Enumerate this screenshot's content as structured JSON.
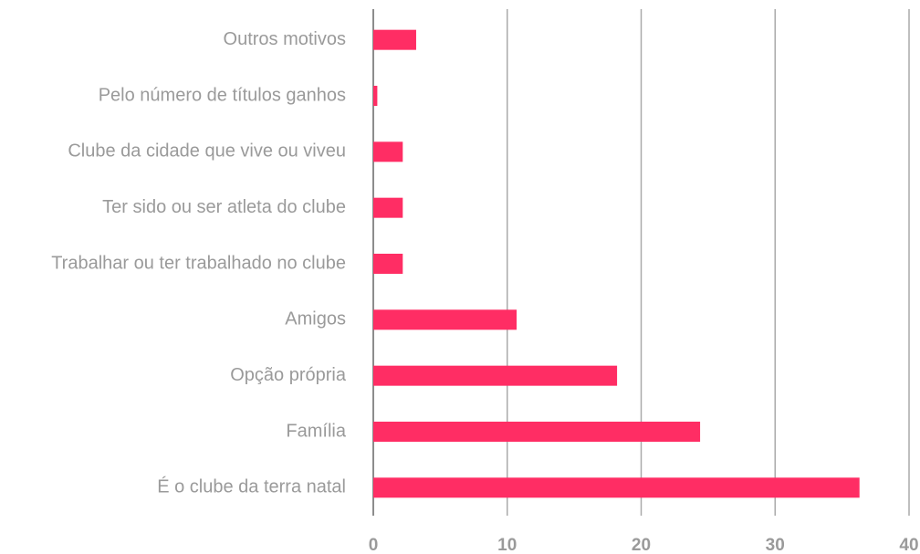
{
  "chart_data": {
    "type": "barh",
    "categories": [
      "Outros motivos",
      "Pelo número de títulos ganhos",
      "Clube da cidade que vive ou viveu",
      "Ter sido ou ser atleta do clube",
      "Trabalhar ou ter trabalhado no clube",
      "Amigos",
      "Opção própria",
      "Família",
      "É o clube da terra natal"
    ],
    "values": [
      3.2,
      0.3,
      2.2,
      2.2,
      2.2,
      10.7,
      18.2,
      24.4,
      36.3
    ],
    "color": "#ff2d64",
    "xlim": [
      0,
      40
    ],
    "xticks": [
      0,
      10,
      20,
      30,
      40
    ],
    "grid": true
  }
}
